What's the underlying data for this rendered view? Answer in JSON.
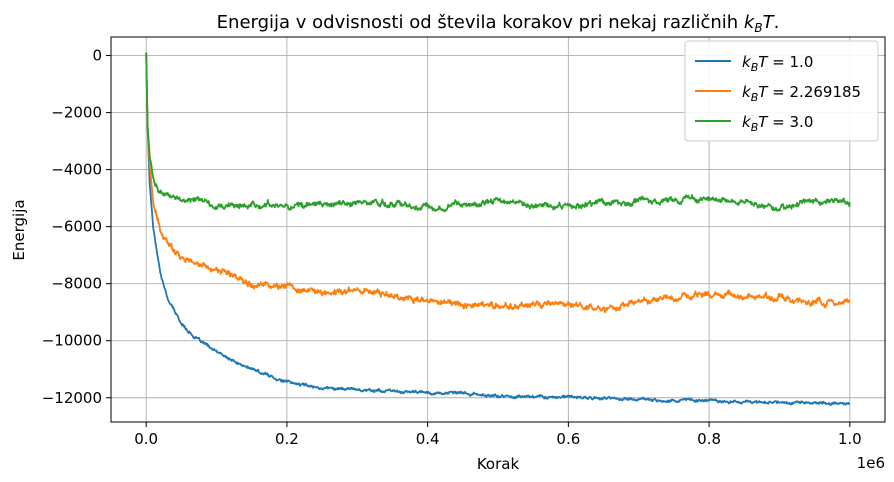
{
  "chart_data": {
    "type": "line",
    "title": "Energija v odvisnosti od števila korakov pri nekaj različnih k_BT.",
    "title_prefix": "Energija v odvisnosti od števila korakov pri nekaj različnih ",
    "xlabel": "Korak",
    "ylabel": "Energija",
    "x_offset_label": "1e6",
    "xlim": [
      -0.05,
      1.05
    ],
    "ylim": [
      -12850,
      650
    ],
    "xticks": [
      0.0,
      0.2,
      0.4,
      0.6,
      0.8,
      1.0
    ],
    "xtick_labels": [
      "0.0",
      "0.2",
      "0.4",
      "0.6",
      "0.8",
      "1.0"
    ],
    "yticks": [
      0,
      -2000,
      -4000,
      -6000,
      -8000,
      -10000,
      -12000
    ],
    "ytick_labels": [
      "0",
      "−2000",
      "−4000",
      "−6000",
      "−8000",
      "−10000",
      "−12000"
    ],
    "grid": true,
    "legend_position": "top-right",
    "series": [
      {
        "name": "k_BT = 1.0",
        "legend_value": "1.0",
        "color": "#1f77b4",
        "noise": 50,
        "x": [
          0,
          0.002,
          0.005,
          0.01,
          0.02,
          0.03,
          0.05,
          0.07,
          0.1,
          0.13,
          0.15,
          0.2,
          0.25,
          0.3,
          0.35,
          0.4,
          0.45,
          0.5,
          0.55,
          0.6,
          0.65,
          0.7,
          0.75,
          0.8,
          0.85,
          0.9,
          0.95,
          1.0
        ],
        "y": [
          100,
          -2500,
          -4500,
          -6000,
          -7600,
          -8500,
          -9400,
          -9900,
          -10400,
          -10800,
          -11000,
          -11450,
          -11650,
          -11700,
          -11780,
          -11820,
          -11850,
          -11950,
          -11950,
          -11980,
          -12020,
          -12050,
          -12100,
          -12080,
          -12150,
          -12150,
          -12180,
          -12200
        ]
      },
      {
        "name": "k_BT = 2.269185",
        "legend_value": "2.269185",
        "color": "#ff7f0e",
        "noise": 110,
        "x": [
          0,
          0.002,
          0.005,
          0.01,
          0.02,
          0.03,
          0.05,
          0.07,
          0.1,
          0.13,
          0.15,
          0.2,
          0.25,
          0.3,
          0.35,
          0.4,
          0.45,
          0.5,
          0.55,
          0.6,
          0.65,
          0.7,
          0.75,
          0.8,
          0.85,
          0.9,
          0.95,
          1.0
        ],
        "y": [
          100,
          -2500,
          -3800,
          -5200,
          -6200,
          -6600,
          -7000,
          -7300,
          -7500,
          -7800,
          -7950,
          -8100,
          -8350,
          -8200,
          -8400,
          -8650,
          -8700,
          -8800,
          -8750,
          -8700,
          -8900,
          -8650,
          -8550,
          -8300,
          -8450,
          -8500,
          -8700,
          -8650
        ]
      },
      {
        "name": "k_BT = 3.0",
        "legend_value": "3.0",
        "color": "#2ca02c",
        "noise": 100,
        "x": [
          0,
          0.002,
          0.005,
          0.01,
          0.02,
          0.03,
          0.05,
          0.07,
          0.1,
          0.13,
          0.15,
          0.2,
          0.25,
          0.3,
          0.35,
          0.4,
          0.45,
          0.5,
          0.55,
          0.6,
          0.65,
          0.7,
          0.75,
          0.8,
          0.85,
          0.9,
          0.95,
          1.0
        ],
        "y": [
          100,
          -2500,
          -3500,
          -4300,
          -4800,
          -4950,
          -5050,
          -5100,
          -5250,
          -5300,
          -5200,
          -5250,
          -5250,
          -5150,
          -5200,
          -5300,
          -5200,
          -5100,
          -5250,
          -5300,
          -5150,
          -5100,
          -5050,
          -5000,
          -5150,
          -5400,
          -5050,
          -5200
        ]
      }
    ]
  }
}
